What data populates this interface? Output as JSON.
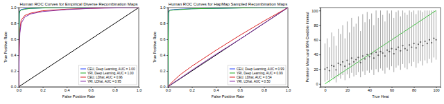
{
  "chart_data": [
    {
      "type": "line",
      "title": "Human ROC Curves for Empirical Diverse Recombination Maps",
      "x_label": "False Positive Rate",
      "y_label": "True Positive Rate",
      "xlim": [
        0,
        1
      ],
      "ylim": [
        0,
        1
      ],
      "xticks": [
        {
          "value": 0,
          "label": "0.0"
        },
        0.2,
        0.4,
        0.6,
        0.8,
        {
          "value": 1,
          "label": "1.0"
        }
      ],
      "yticks": [
        {
          "value": 0,
          "label": "0.0"
        },
        0.2,
        0.4,
        0.6,
        0.8,
        {
          "value": 1,
          "label": "1.0"
        }
      ],
      "grid": false,
      "legend": "lower right",
      "reference_line": {
        "x": [
          0,
          1
        ],
        "y": [
          0,
          1
        ],
        "color": "#000000"
      },
      "series": [
        {
          "name": "CEU, Deep Learning, AUC = 1.00",
          "color": "#2040ff",
          "x": [
            0,
            0.005,
            0.01,
            0.02,
            0.05,
            0.1,
            0.2,
            0.4,
            0.6,
            0.8,
            1.0
          ],
          "values": [
            0,
            0.93,
            0.96,
            0.975,
            0.985,
            0.99,
            0.995,
            1,
            1,
            1,
            1
          ]
        },
        {
          "name": "YRI, Deep Learning, AUC = 1.00",
          "color": "#22aa22",
          "x": [
            0,
            0.005,
            0.01,
            0.02,
            0.05,
            0.1,
            0.2,
            0.4,
            0.6,
            0.8,
            1.0
          ],
          "values": [
            0,
            0.92,
            0.955,
            0.97,
            0.98,
            0.99,
            0.995,
            1,
            1,
            1,
            1
          ]
        },
        {
          "name": "CEU, LDhat, AUC = 0.96",
          "color": "#dd2222",
          "x": [
            0,
            0.005,
            0.01,
            0.02,
            0.05,
            0.1,
            0.2,
            0.4,
            0.6,
            0.8,
            1.0
          ],
          "values": [
            0,
            0.55,
            0.72,
            0.84,
            0.9,
            0.93,
            0.96,
            0.98,
            0.99,
            1,
            1
          ]
        },
        {
          "name": "YRI, LDhat, AUC = 0.95",
          "color": "#8833aa",
          "x": [
            0,
            0.005,
            0.01,
            0.02,
            0.05,
            0.1,
            0.2,
            0.4,
            0.6,
            0.8,
            1.0
          ],
          "values": [
            0,
            0.5,
            0.68,
            0.8,
            0.88,
            0.92,
            0.95,
            0.975,
            0.99,
            0.995,
            1
          ]
        }
      ]
    },
    {
      "type": "line",
      "title": "Human ROC Curves for HapMap Sampled Recombination Maps",
      "x_label": "False Positive Rate",
      "y_label": "True Positive Rate",
      "xlim": [
        0,
        1
      ],
      "ylim": [
        0,
        1
      ],
      "xticks": [
        {
          "value": 0,
          "label": "0.0"
        },
        0.2,
        0.4,
        0.6,
        0.8,
        {
          "value": 1,
          "label": "1.0"
        }
      ],
      "yticks": [
        {
          "value": 0,
          "label": "0.0"
        },
        0.2,
        0.4,
        0.6,
        0.8,
        {
          "value": 1,
          "label": "1.0"
        }
      ],
      "grid": false,
      "legend": "lower right",
      "reference_line": {
        "x": [
          0,
          1
        ],
        "y": [
          0,
          1
        ],
        "color": "#000000"
      },
      "series": [
        {
          "name": "CEU, Deep Learning, AUC = 0.99",
          "color": "#2040ff",
          "x": [
            0,
            0.005,
            0.01,
            0.02,
            0.05,
            0.1,
            0.2,
            0.4,
            0.6,
            0.8,
            1.0
          ],
          "values": [
            0,
            0.94,
            0.96,
            0.97,
            0.975,
            0.98,
            0.985,
            0.99,
            0.995,
            1,
            1
          ]
        },
        {
          "name": "YRI, Deep Learning, AUC = 0.99",
          "color": "#22aa22",
          "x": [
            0,
            0.005,
            0.01,
            0.02,
            0.05,
            0.1,
            0.2,
            0.4,
            0.6,
            0.8,
            1.0
          ],
          "values": [
            0,
            0.93,
            0.955,
            0.965,
            0.97,
            0.975,
            0.985,
            0.99,
            0.995,
            1,
            1
          ]
        },
        {
          "name": "CEU, LDhat, AUC = 0.54",
          "color": "#dd2222",
          "x": [
            0,
            0.005,
            0.01,
            0.02,
            0.05,
            0.1,
            0.2,
            0.4,
            0.6,
            0.8,
            1.0
          ],
          "values": [
            0,
            0.01,
            0.02,
            0.035,
            0.08,
            0.15,
            0.26,
            0.46,
            0.65,
            0.83,
            1
          ]
        },
        {
          "name": "YRI, LDhat, AUC = 0.50",
          "color": "#8833aa",
          "x": [
            0,
            0.005,
            0.01,
            0.02,
            0.05,
            0.1,
            0.2,
            0.4,
            0.6,
            0.8,
            1.0
          ],
          "values": [
            0,
            0.006,
            0.011,
            0.022,
            0.055,
            0.105,
            0.21,
            0.41,
            0.6,
            0.8,
            1
          ]
        }
      ]
    },
    {
      "type": "scatter",
      "x_label": "True Heat",
      "y_label": "Posterior Mean and 95% Credible Interval",
      "xlim": [
        -4,
        104
      ],
      "ylim": [
        -4,
        104
      ],
      "xticks": [
        0,
        20,
        40,
        60,
        80,
        100
      ],
      "yticks": [
        0,
        20,
        40,
        60,
        80,
        100
      ],
      "grid": false,
      "reference_line": {
        "x": [
          0,
          100
        ],
        "y": [
          0,
          100
        ],
        "color": "#33cc33"
      },
      "series": [
        {
          "color": "#555555",
          "marker": "circle",
          "x": [
            0,
            2,
            4,
            6,
            8,
            10,
            12,
            14,
            16,
            18,
            20,
            22,
            24,
            26,
            28,
            30,
            32,
            34,
            36,
            38,
            40,
            42,
            44,
            46,
            48,
            50,
            52,
            54,
            56,
            58,
            60,
            62,
            64,
            66,
            68,
            70,
            72,
            74,
            76,
            78,
            80,
            82,
            84,
            86,
            88,
            90,
            92,
            94,
            96,
            98,
            100
          ],
          "values": [
            20,
            22,
            18,
            25,
            24,
            19,
            28,
            26,
            30,
            24,
            32,
            27,
            35,
            30,
            33,
            36,
            29,
            38,
            34,
            40,
            37,
            41,
            35,
            43,
            39,
            44,
            42,
            38,
            46,
            44,
            48,
            41,
            47,
            50,
            45,
            52,
            48,
            46,
            53,
            50,
            55,
            49,
            54,
            57,
            52,
            58,
            55,
            60,
            56,
            62,
            60
          ],
          "ci_low": [
            3,
            5,
            2,
            8,
            6,
            2,
            10,
            7,
            12,
            5,
            13,
            8,
            15,
            10,
            12,
            16,
            9,
            17,
            12,
            18,
            15,
            19,
            12,
            20,
            16,
            21,
            18,
            14,
            22,
            19,
            24,
            16,
            22,
            25,
            19,
            27,
            22,
            20,
            28,
            24,
            30,
            22,
            28,
            31,
            25,
            32,
            28,
            34,
            29,
            36,
            33
          ],
          "ci_high": [
            55,
            62,
            50,
            70,
            65,
            52,
            75,
            68,
            80,
            62,
            85,
            70,
            90,
            78,
            82,
            92,
            72,
            95,
            84,
            98,
            88,
            96,
            80,
            100,
            90,
            100,
            94,
            85,
            100,
            96,
            100,
            90,
            98,
            100,
            92,
            100,
            97,
            94,
            100,
            98,
            100,
            95,
            100,
            100,
            98,
            100,
            100,
            100,
            100,
            100,
            100
          ]
        }
      ]
    }
  ]
}
